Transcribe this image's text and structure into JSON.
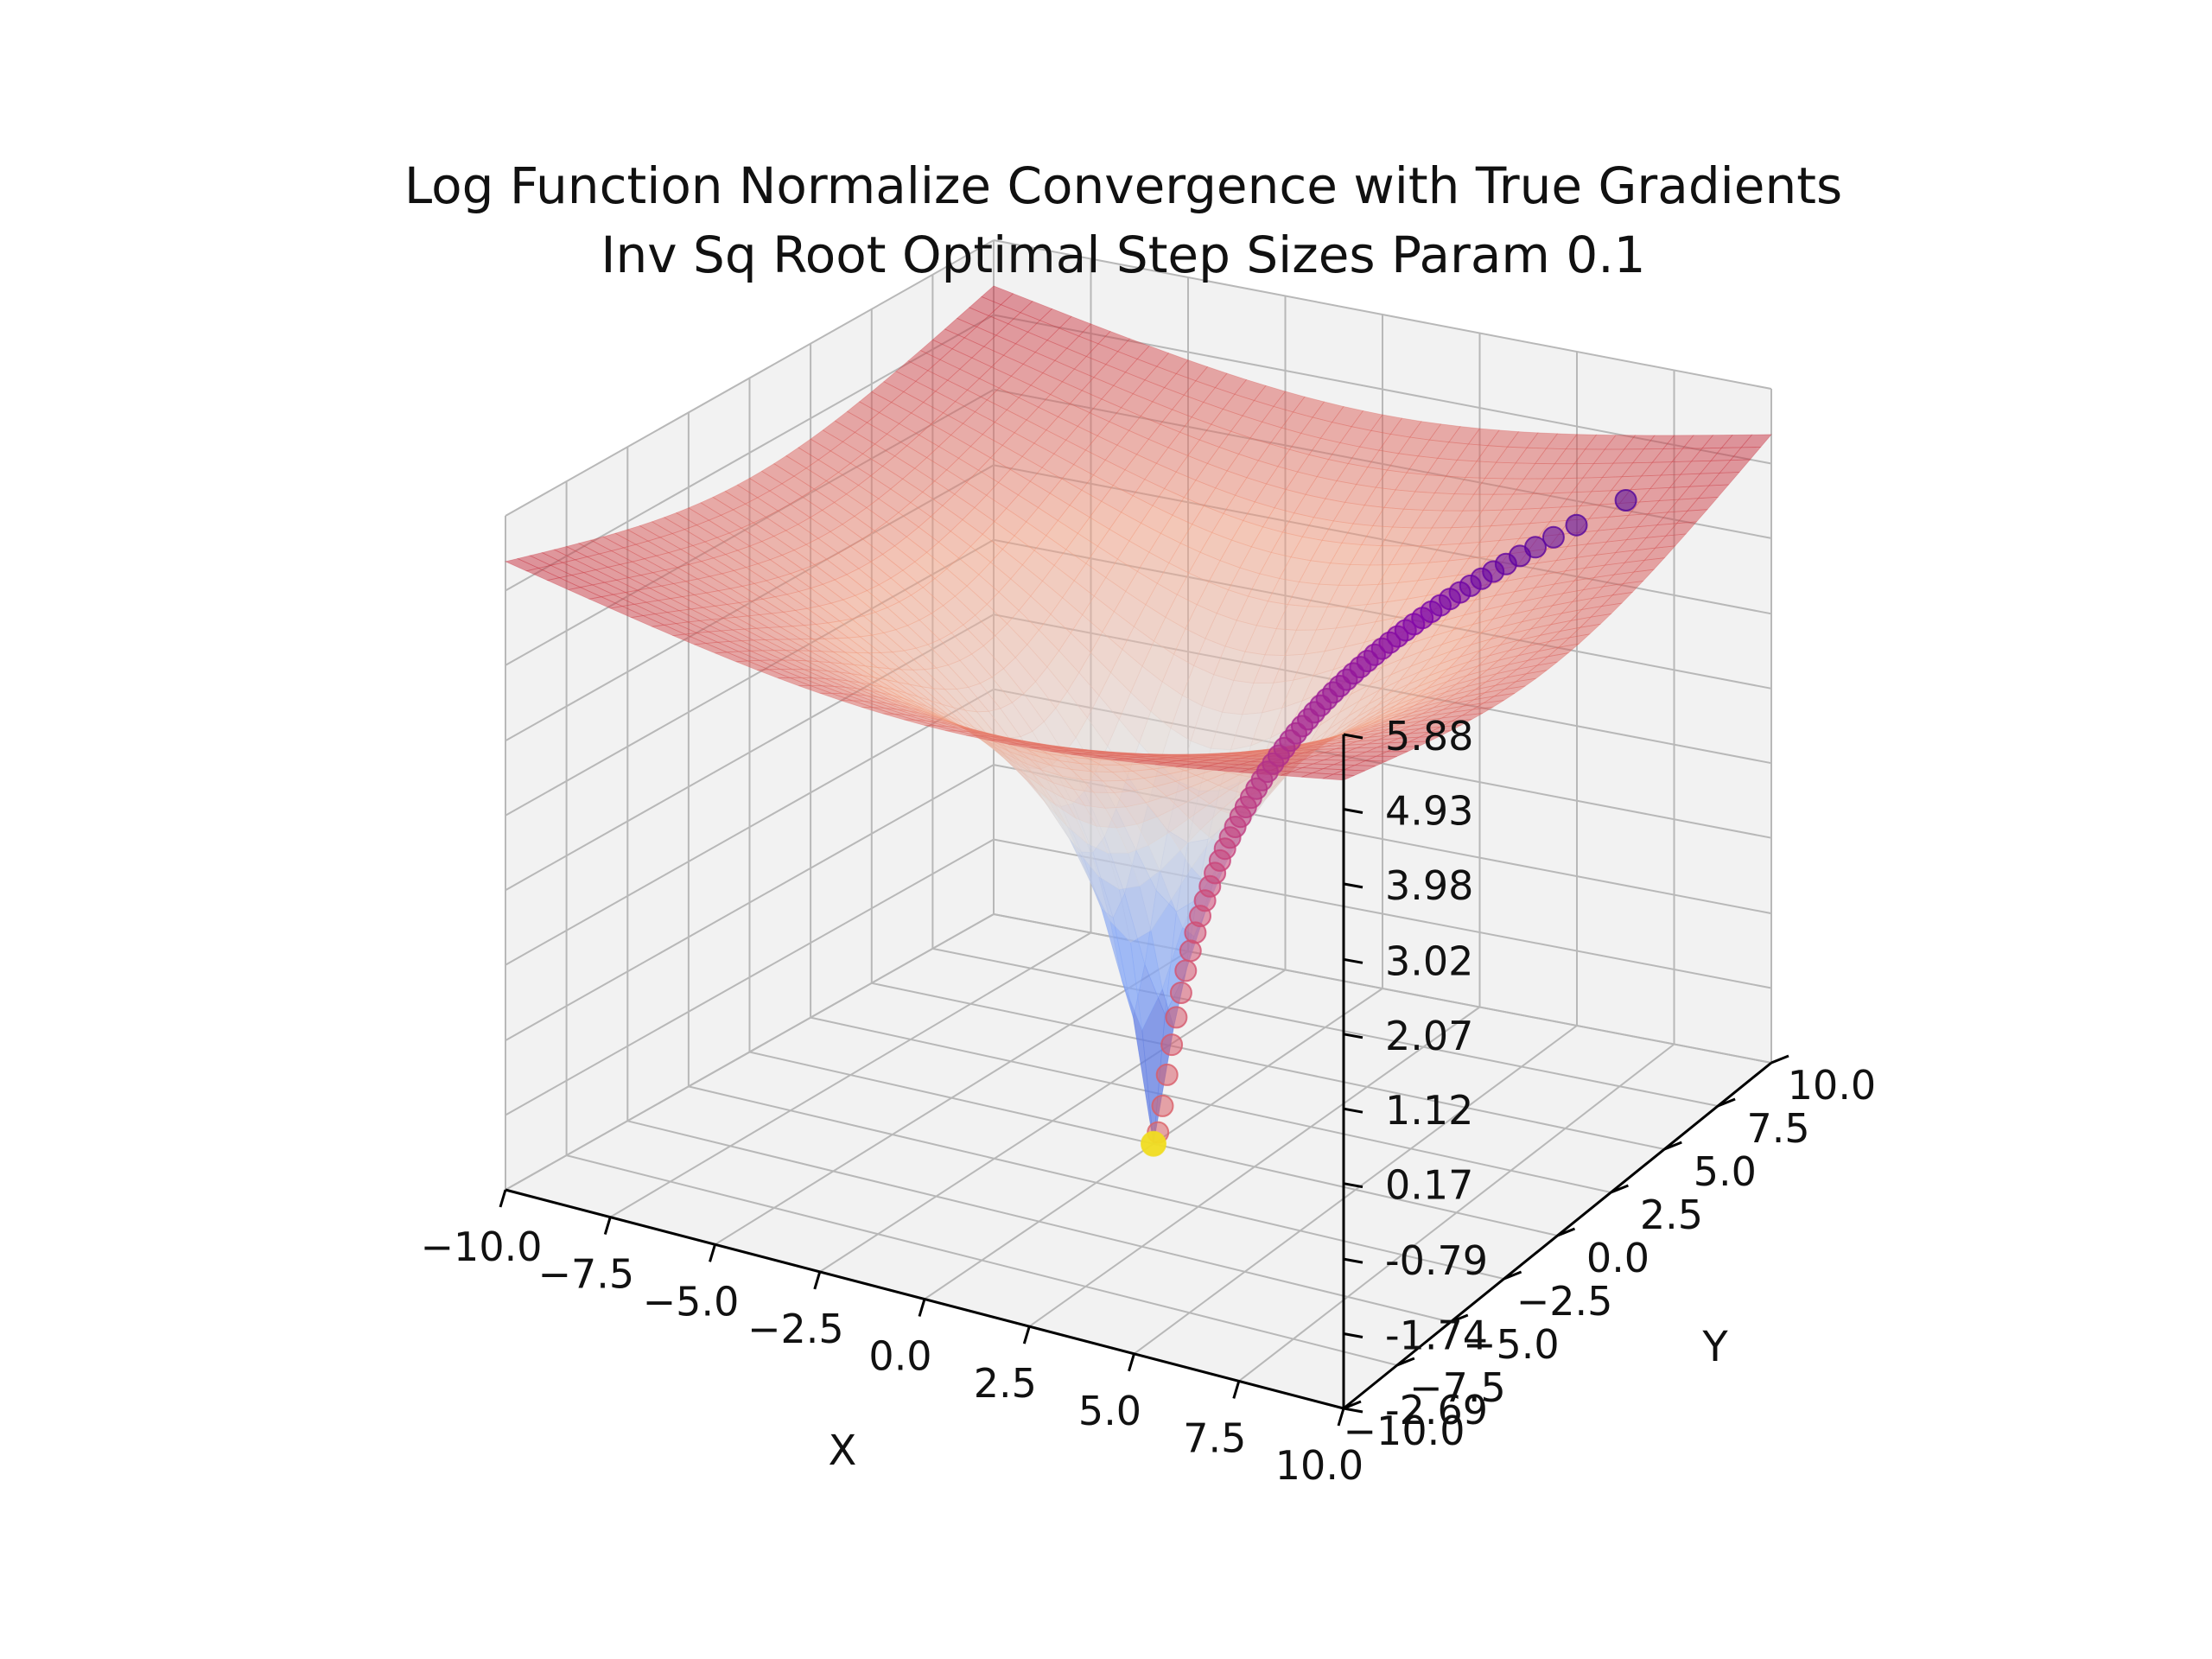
{
  "chart_data": {
    "type": "surface3d",
    "title": "Log Function Normalize Convergence with True Gradients",
    "subtitle": "Inv Sq Root Optimal Step Sizes Param 0.1",
    "xlabel": "X",
    "ylabel": "Y",
    "zlabel": "",
    "xlim": [
      -10,
      10
    ],
    "ylim": [
      -10,
      10
    ],
    "zlim": [
      -2.69,
      5.88
    ],
    "x_ticks": [
      "−10.0",
      "−7.5",
      "−5.0",
      "−2.5",
      "0.0",
      "2.5",
      "5.0",
      "7.5",
      "10.0"
    ],
    "y_ticks": [
      "−10.0",
      "−7.5",
      "−5.0",
      "−2.5",
      "0.0",
      "2.5",
      "5.0",
      "7.5",
      "10.0"
    ],
    "z_ticks": [
      "-2.69",
      "-1.74",
      "-0.79",
      "0.17",
      "1.12",
      "2.07",
      "3.02",
      "3.98",
      "4.93",
      "5.88"
    ],
    "grid": true,
    "surface": {
      "function": "log(x^2 + y^2)",
      "colormap": "coolwarm",
      "alpha": 0.5
    },
    "trajectory": {
      "start": {
        "x": 7.6,
        "y": 7.6,
        "z": 4.75
      },
      "end": {
        "x": 0.0,
        "y": 0.0,
        "z": -2.69
      },
      "points": 60,
      "colormap": "plasma"
    },
    "colors": {
      "pane": "#f2f2f2",
      "grid": "#b8b8b8",
      "axis": "#000000"
    }
  }
}
